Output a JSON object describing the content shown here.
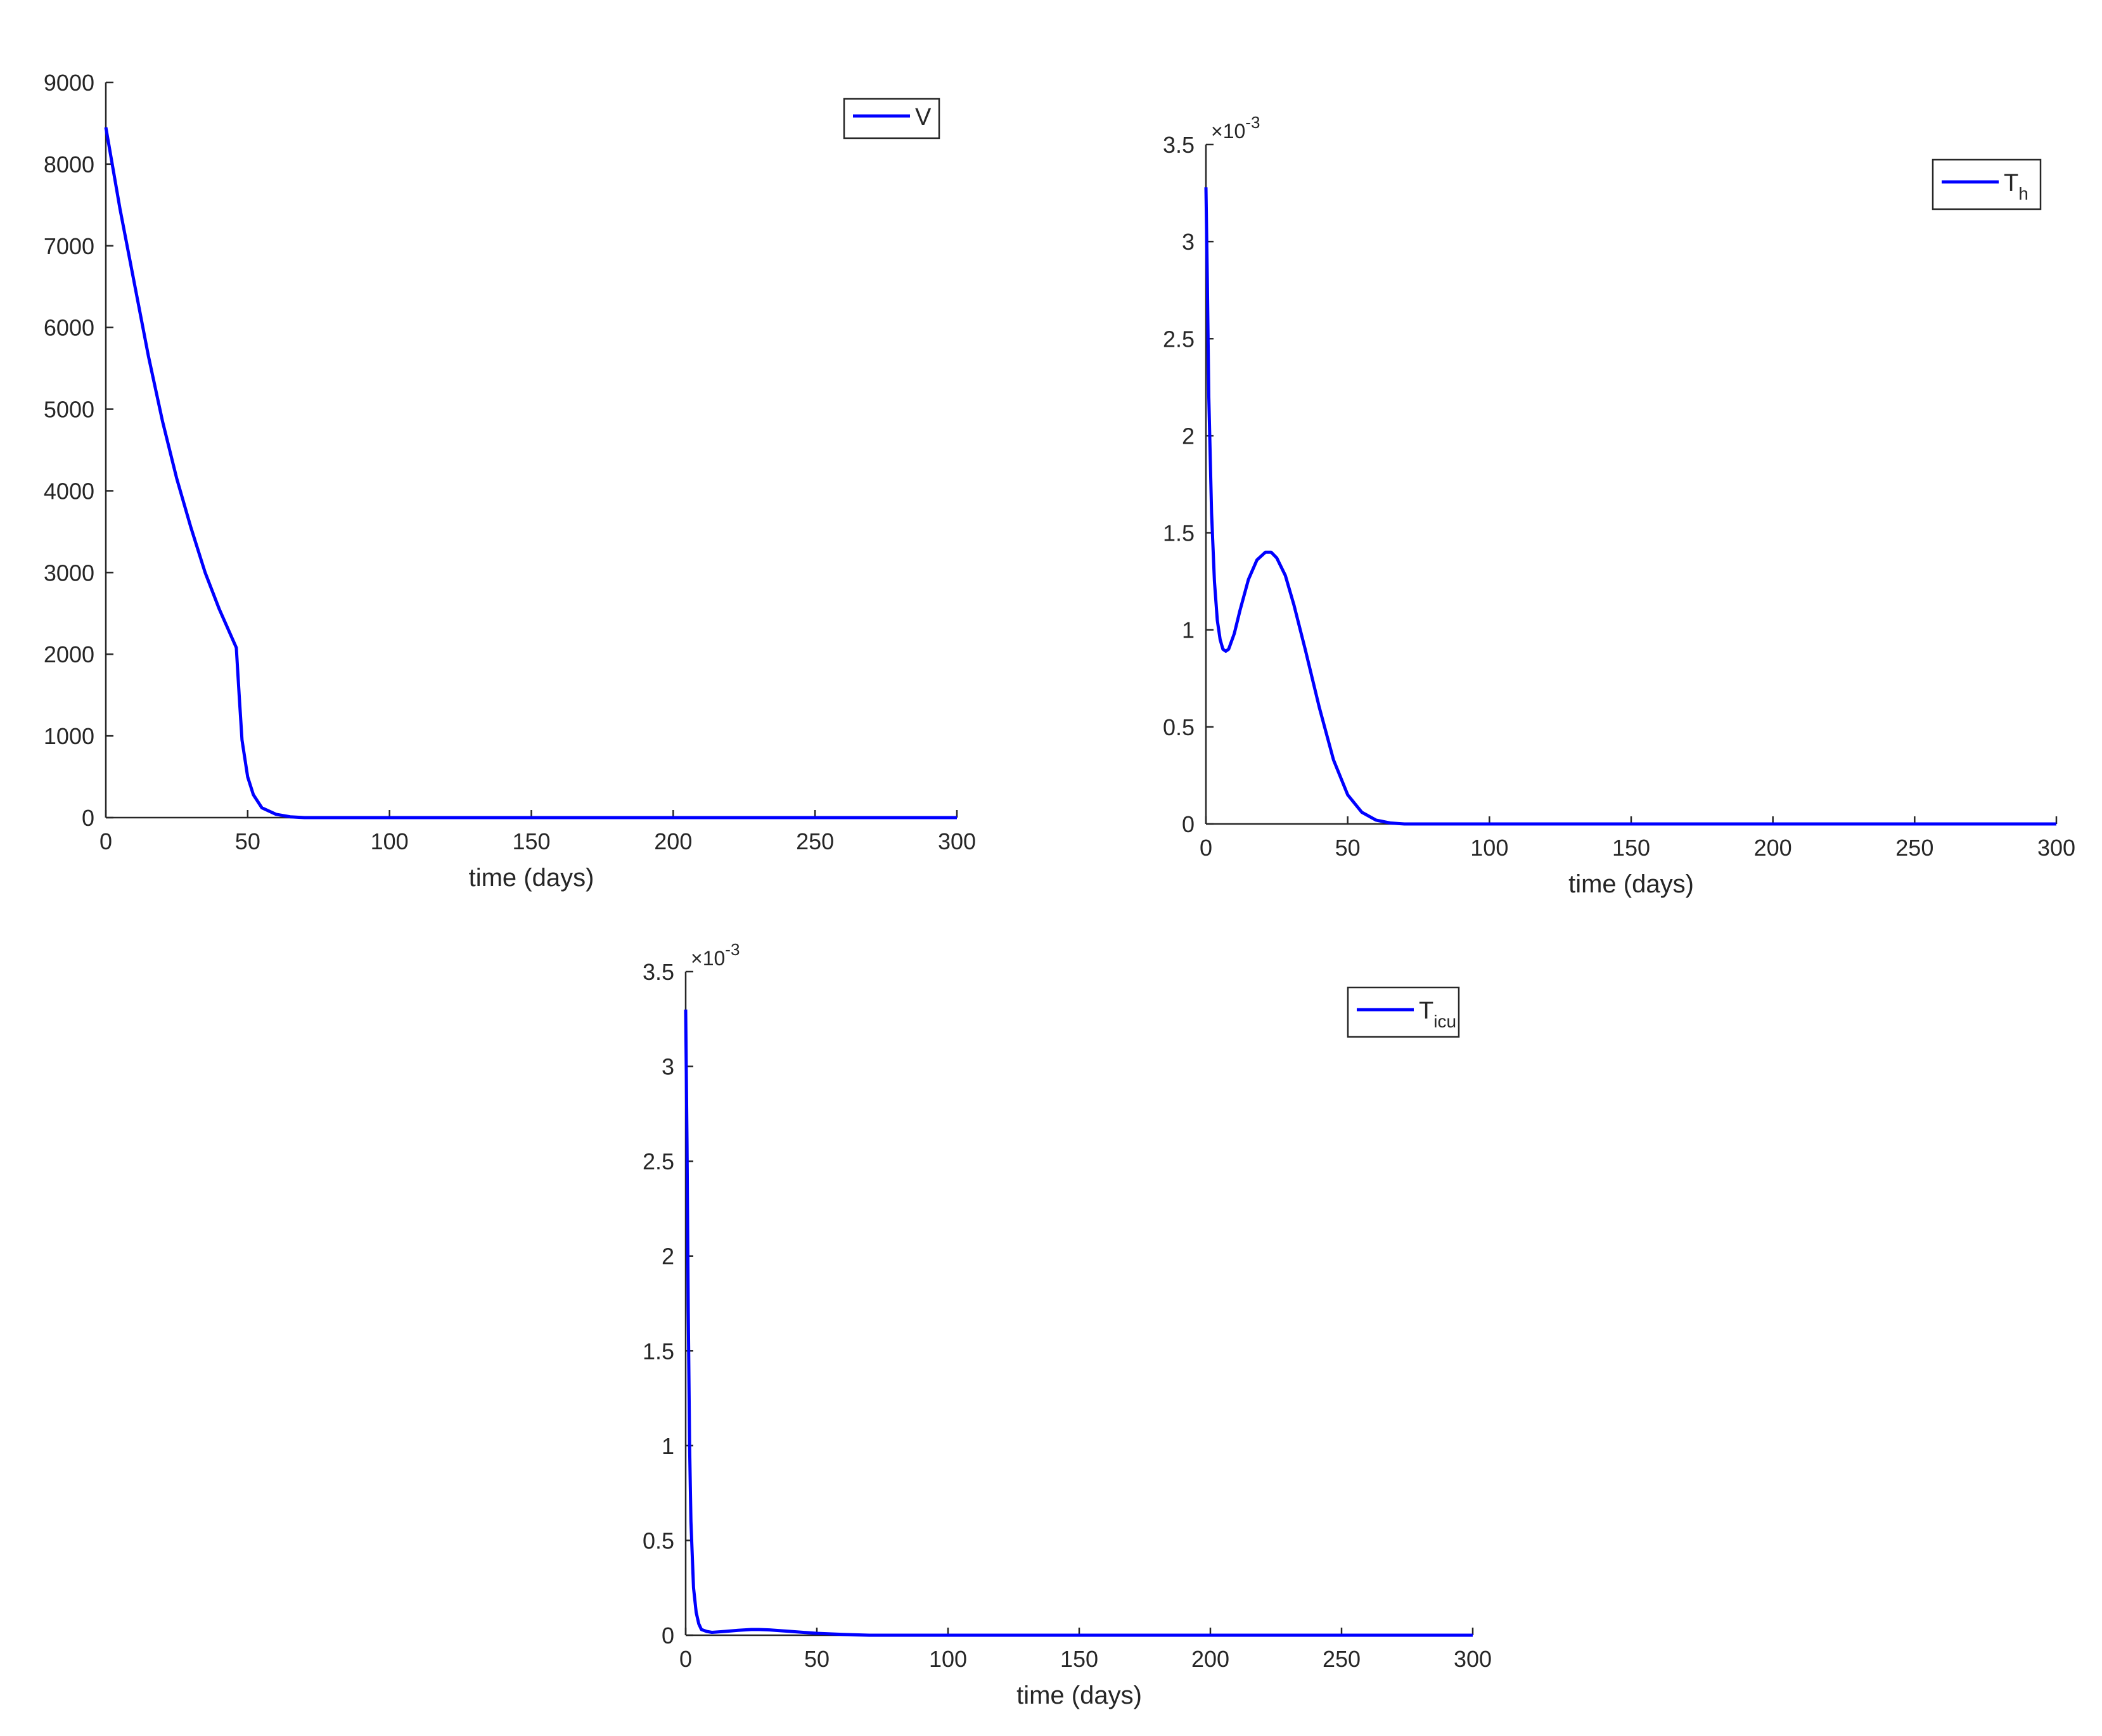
{
  "chart_data": [
    {
      "type": "line",
      "xlabel": "time (days)",
      "ylabel": "",
      "xlim": [
        0,
        300
      ],
      "ylim": [
        0,
        9000
      ],
      "x_ticks": [
        "0",
        "50",
        "100",
        "150",
        "200",
        "250",
        "300"
      ],
      "y_ticks": [
        "0",
        "1000",
        "2000",
        "3000",
        "4000",
        "5000",
        "6000",
        "7000",
        "8000",
        "9000"
      ],
      "y_exponent": "",
      "legend": {
        "position": "top-right",
        "label": "V",
        "sub": ""
      },
      "grid": false,
      "line_color": "#0000ff",
      "series": [
        {
          "name": "V",
          "x": [
            0,
            5,
            10,
            15,
            20,
            25,
            30,
            35,
            40,
            46,
            47,
            48,
            50,
            52,
            55,
            60,
            65,
            70,
            80,
            100,
            150,
            200,
            250,
            300
          ],
          "y": [
            8450,
            7450,
            6550,
            5650,
            4850,
            4150,
            3550,
            3000,
            2550,
            2080,
            1500,
            950,
            500,
            280,
            120,
            40,
            10,
            0,
            0,
            0,
            0,
            0,
            0,
            0
          ]
        }
      ]
    },
    {
      "type": "line",
      "xlabel": "time (days)",
      "ylabel": "",
      "xlim": [
        0,
        300
      ],
      "ylim": [
        0,
        3.5
      ],
      "x_ticks": [
        "0",
        "50",
        "100",
        "150",
        "200",
        "250",
        "300"
      ],
      "y_ticks": [
        "0",
        "0.5",
        "1",
        "1.5",
        "2",
        "2.5",
        "3",
        "3.5"
      ],
      "y_exponent": "-3",
      "legend": {
        "position": "top-right",
        "label": "T",
        "sub": "h"
      },
      "grid": false,
      "line_color": "#0000ff",
      "series": [
        {
          "name": "T_h",
          "x": [
            0,
            0.5,
            1,
            2,
            3,
            4,
            5,
            6,
            7,
            8,
            10,
            12,
            15,
            18,
            21,
            23,
            25,
            28,
            31,
            35,
            40,
            45,
            50,
            55,
            60,
            65,
            70,
            80,
            100,
            150,
            200,
            250,
            300
          ],
          "y": [
            3.28,
            2.8,
            2.2,
            1.6,
            1.25,
            1.05,
            0.95,
            0.9,
            0.89,
            0.9,
            0.98,
            1.1,
            1.26,
            1.36,
            1.4,
            1.4,
            1.37,
            1.28,
            1.13,
            0.9,
            0.6,
            0.33,
            0.15,
            0.06,
            0.02,
            0.005,
            0,
            0,
            0,
            0,
            0,
            0,
            0
          ]
        }
      ]
    },
    {
      "type": "line",
      "xlabel": "time (days)",
      "ylabel": "",
      "xlim": [
        0,
        300
      ],
      "ylim": [
        0,
        3.5
      ],
      "x_ticks": [
        "0",
        "50",
        "100",
        "150",
        "200",
        "250",
        "300"
      ],
      "y_ticks": [
        "0",
        "0.5",
        "1",
        "1.5",
        "2",
        "2.5",
        "3",
        "3.5"
      ],
      "y_exponent": "-3",
      "legend": {
        "position": "top-right",
        "label": "T",
        "sub": "icu"
      },
      "grid": false,
      "line_color": "#0000ff",
      "series": [
        {
          "name": "T_icu",
          "x": [
            0,
            0.5,
            1,
            1.5,
            2,
            3,
            4,
            5,
            6,
            8,
            10,
            15,
            20,
            25,
            28,
            32,
            40,
            50,
            60,
            70,
            100,
            150,
            200,
            250,
            300
          ],
          "y": [
            3.3,
            2.6,
            1.7,
            1.0,
            0.6,
            0.25,
            0.12,
            0.06,
            0.03,
            0.02,
            0.015,
            0.02,
            0.026,
            0.03,
            0.03,
            0.028,
            0.02,
            0.01,
            0.004,
            0,
            0,
            0,
            0,
            0,
            0
          ]
        }
      ]
    }
  ]
}
